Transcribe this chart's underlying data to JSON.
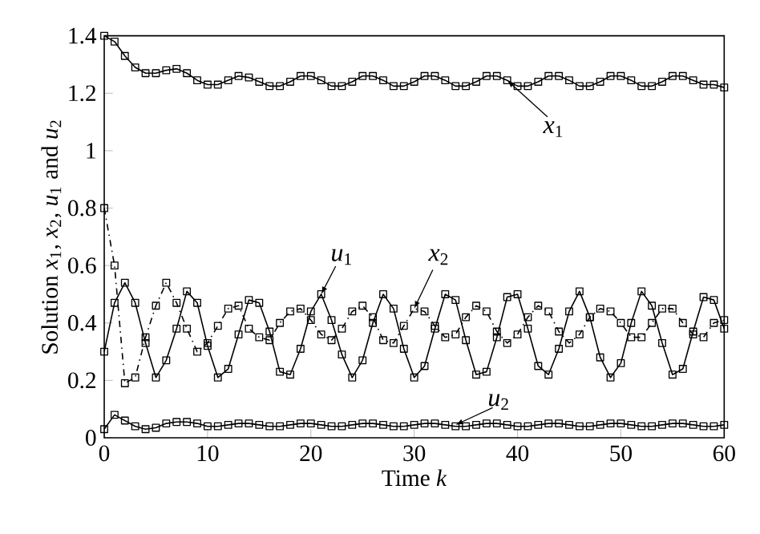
{
  "chart_data": {
    "type": "line",
    "xlabel": "Time *k*",
    "ylabel": "Solution *x*$_{1}$, *x*$_{2}$, *u*$_{1}$ and *u*$_{2}$",
    "x": [
      0,
      1,
      2,
      3,
      4,
      5,
      6,
      7,
      8,
      9,
      10,
      11,
      12,
      13,
      14,
      15,
      16,
      17,
      18,
      19,
      20,
      21,
      22,
      23,
      24,
      25,
      26,
      27,
      28,
      29,
      30,
      31,
      32,
      33,
      34,
      35,
      36,
      37,
      38,
      39,
      40,
      41,
      42,
      43,
      44,
      45,
      46,
      47,
      48,
      49,
      50,
      51,
      52,
      53,
      54,
      55,
      56,
      57,
      58,
      59,
      60
    ],
    "xlim": [
      0,
      60
    ],
    "xticks": [
      0,
      10,
      20,
      30,
      40,
      50,
      60
    ],
    "ylim": [
      0,
      1.4
    ],
    "yticks": [
      0,
      {
        "value": 0.2,
        "label": "0.2"
      },
      {
        "value": 0.4,
        "label": "0.4"
      },
      {
        "value": 0.6,
        "label": "0.6"
      },
      {
        "value": 0.8,
        "label": "0.8"
      },
      1,
      {
        "value": 1.2,
        "label": "1.2"
      },
      {
        "value": 1.4,
        "label": "1.4"
      }
    ],
    "marker": "square",
    "grid": false,
    "series": [
      {
        "color": "#000000",
        "line_style": "solid",
        "values": [
          1.4,
          1.38,
          1.33,
          1.29,
          1.27,
          1.27,
          1.28,
          1.285,
          1.27,
          1.245,
          1.23,
          1.23,
          1.245,
          1.26,
          1.255,
          1.24,
          1.225,
          1.225,
          1.24,
          1.26,
          1.26,
          1.245,
          1.225,
          1.225,
          1.24,
          1.26,
          1.26,
          1.245,
          1.225,
          1.225,
          1.24,
          1.26,
          1.26,
          1.245,
          1.225,
          1.225,
          1.24,
          1.26,
          1.26,
          1.245,
          1.225,
          1.225,
          1.24,
          1.26,
          1.26,
          1.245,
          1.225,
          1.225,
          1.24,
          1.26,
          1.26,
          1.245,
          1.225,
          1.225,
          1.24,
          1.26,
          1.26,
          1.245,
          1.23,
          1.23,
          1.22
        ]
      },
      {
        "color": "#000000",
        "line_style": "dashed",
        "values": [
          0.8,
          0.6,
          0.19,
          0.21,
          0.35,
          0.46,
          0.54,
          0.47,
          0.38,
          0.3,
          0.33,
          0.39,
          0.45,
          0.46,
          0.38,
          0.35,
          0.34,
          0.4,
          0.44,
          0.45,
          0.41,
          0.36,
          0.34,
          0.38,
          0.44,
          0.46,
          0.42,
          0.34,
          0.33,
          0.39,
          0.45,
          0.44,
          0.39,
          0.35,
          0.36,
          0.42,
          0.46,
          0.44,
          0.37,
          0.33,
          0.36,
          0.42,
          0.46,
          0.44,
          0.37,
          0.33,
          0.36,
          0.42,
          0.45,
          0.44,
          0.4,
          0.35,
          0.35,
          0.4,
          0.45,
          0.45,
          0.4,
          0.36,
          0.35,
          0.4,
          0.41
        ]
      },
      {
        "color": "#000000",
        "line_style": "solid",
        "values": [
          0.3,
          0.47,
          0.54,
          0.47,
          0.33,
          0.21,
          0.27,
          0.38,
          0.51,
          0.47,
          0.32,
          0.21,
          0.24,
          0.36,
          0.48,
          0.47,
          0.37,
          0.23,
          0.22,
          0.31,
          0.44,
          0.5,
          0.41,
          0.29,
          0.21,
          0.27,
          0.4,
          0.5,
          0.45,
          0.31,
          0.21,
          0.25,
          0.38,
          0.5,
          0.48,
          0.34,
          0.22,
          0.23,
          0.35,
          0.49,
          0.5,
          0.38,
          0.25,
          0.22,
          0.31,
          0.44,
          0.51,
          0.42,
          0.28,
          0.21,
          0.26,
          0.4,
          0.51,
          0.46,
          0.33,
          0.22,
          0.24,
          0.37,
          0.49,
          0.48,
          0.38
        ]
      },
      {
        "color": "#000000",
        "line_style": "solid",
        "values": [
          0.03,
          0.08,
          0.06,
          0.04,
          0.03,
          0.035,
          0.05,
          0.055,
          0.055,
          0.05,
          0.04,
          0.04,
          0.045,
          0.05,
          0.05,
          0.045,
          0.04,
          0.04,
          0.045,
          0.05,
          0.05,
          0.045,
          0.04,
          0.04,
          0.045,
          0.05,
          0.05,
          0.045,
          0.04,
          0.04,
          0.045,
          0.05,
          0.05,
          0.045,
          0.04,
          0.04,
          0.045,
          0.05,
          0.05,
          0.045,
          0.04,
          0.04,
          0.045,
          0.05,
          0.05,
          0.045,
          0.04,
          0.04,
          0.045,
          0.05,
          0.05,
          0.045,
          0.04,
          0.04,
          0.045,
          0.05,
          0.05,
          0.045,
          0.04,
          0.04,
          0.045
        ]
      }
    ],
    "annotations": [
      {
        "text": "*x*$_{1}$",
        "x": 39,
        "y": 1.245
      },
      {
        "text": "*u*$_{1}$",
        "x": 21,
        "y": 0.5
      },
      {
        "text": "*x*$_{2}$",
        "x": 30,
        "y": 0.45
      },
      {
        "text": "*u*$_{2}$",
        "x": 34,
        "y": 0.045
      }
    ]
  }
}
